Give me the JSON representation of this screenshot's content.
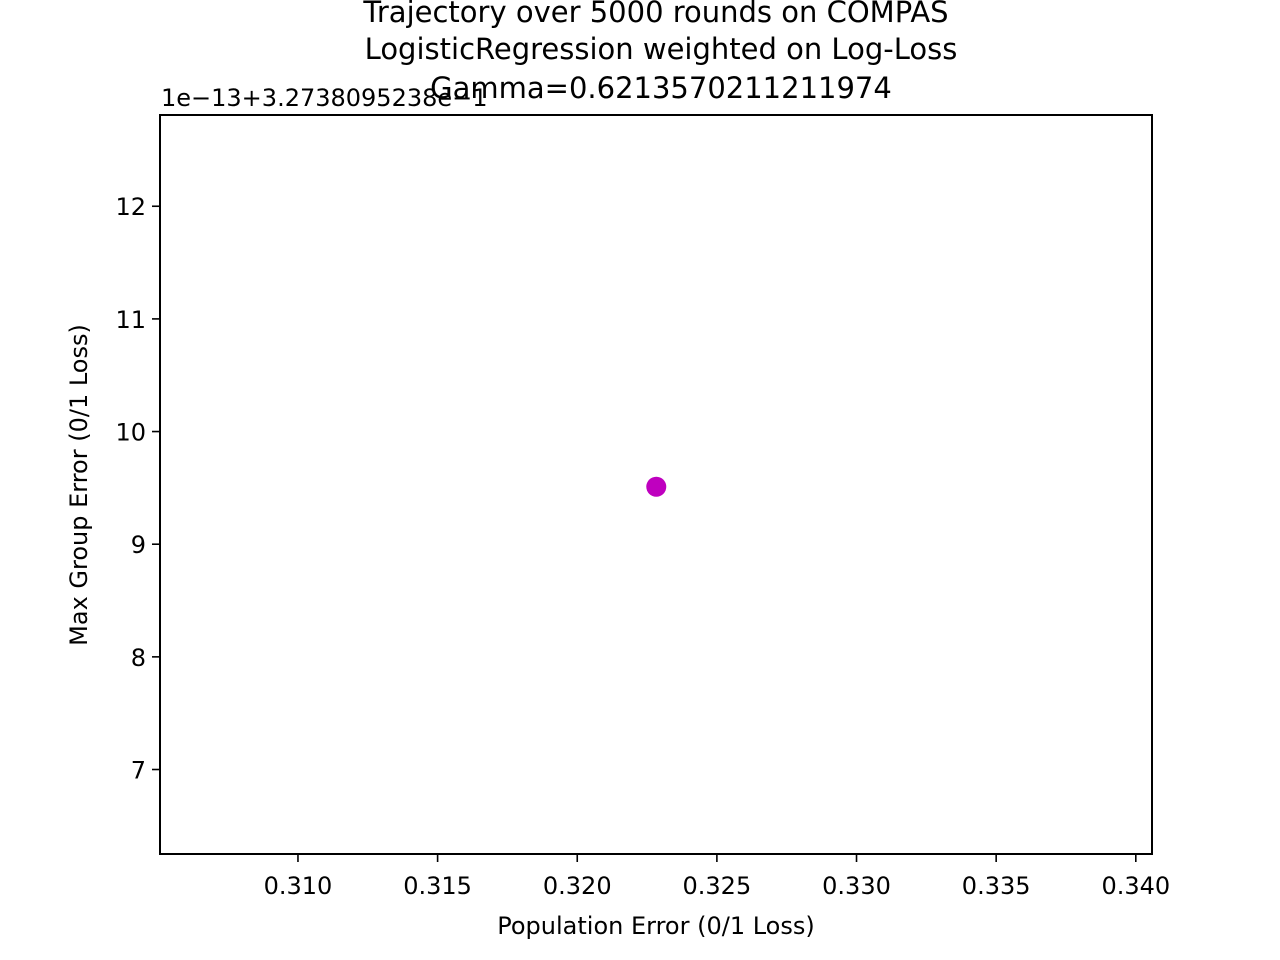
{
  "chart_data": {
    "type": "scatter",
    "title_lines": [
      "Trajectory over 5000 rounds on COMPAS",
      "LogisticRegression weighted on Log-Loss",
      "Gamma=0.6213570211211974"
    ],
    "xlabel": "Population Error (0/1 Loss)",
    "ylabel": "Max Group Error (0/1 Loss)",
    "y_offset_text": "1e−13+3.2738095238e−1",
    "x_ticks": [
      {
        "value": 0.31,
        "label": "0.310"
      },
      {
        "value": 0.315,
        "label": "0.315"
      },
      {
        "value": 0.32,
        "label": "0.320"
      },
      {
        "value": 0.325,
        "label": "0.325"
      },
      {
        "value": 0.33,
        "label": "0.330"
      },
      {
        "value": 0.335,
        "label": "0.335"
      },
      {
        "value": 0.34,
        "label": "0.340"
      }
    ],
    "y_ticks": [
      {
        "value": 7,
        "label": "7"
      },
      {
        "value": 8,
        "label": "8"
      },
      {
        "value": 9,
        "label": "9"
      },
      {
        "value": 10,
        "label": "10"
      },
      {
        "value": 11,
        "label": "11"
      },
      {
        "value": 12,
        "label": "12"
      }
    ],
    "xlim": [
      0.30506,
      0.34058
    ],
    "ylim": [
      6.25,
      12.81
    ],
    "grid": false,
    "legend": "none",
    "series": [
      {
        "color": "#bf00bf",
        "points": [
          {
            "x": 0.32283,
            "y": 9.51
          }
        ]
      }
    ]
  }
}
